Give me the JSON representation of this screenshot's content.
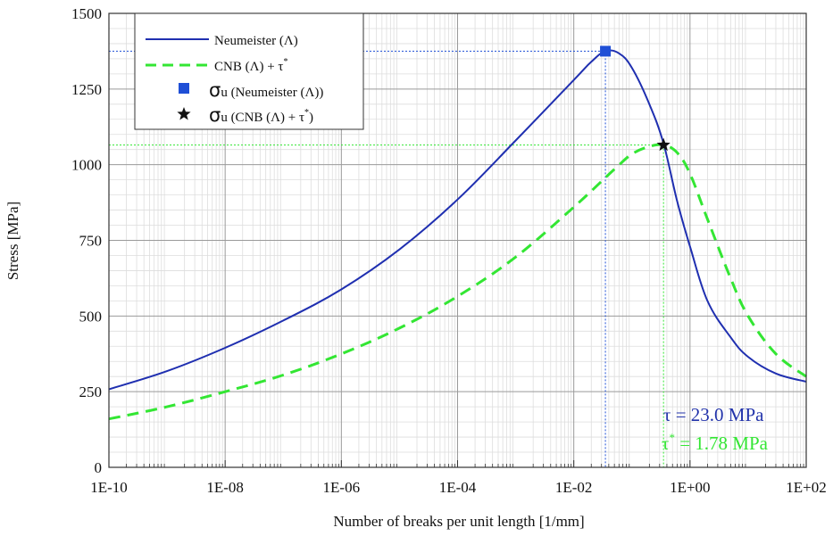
{
  "chart_data": {
    "type": "line",
    "xlabel": "Number of breaks per unit length  [1/mm]",
    "ylabel": "Stress  [MPa]",
    "xscale": "log",
    "xlim": [
      1e-10,
      100
    ],
    "ylim": [
      0,
      1500
    ],
    "xticks": [
      1e-10,
      1e-08,
      1e-06,
      0.0001,
      0.01,
      1,
      100
    ],
    "xtick_labels": [
      "1E-10",
      "1E-08",
      "1E-06",
      "1E-04",
      "1E-02",
      "1E+00",
      "1E+02"
    ],
    "yticks": [
      0,
      250,
      500,
      750,
      1000,
      1250,
      1500
    ],
    "ytick_labels": [
      "0",
      "250",
      "500",
      "750",
      "1000",
      "1250",
      "1500"
    ],
    "grid": true,
    "legend_position": "top-left",
    "series": [
      {
        "name": "Neumeister (Λ)",
        "style": "solid",
        "color": "#1f2fb0",
        "x": [
          1e-10,
          1e-09,
          1e-08,
          1e-07,
          1e-06,
          1e-05,
          0.0001,
          0.001,
          0.01,
          0.02,
          0.035,
          0.06,
          0.1,
          0.2,
          0.35,
          0.6,
          1,
          2,
          5,
          10,
          30,
          100
        ],
        "y": [
          258,
          318,
          395,
          485,
          588,
          720,
          885,
          1080,
          1280,
          1340,
          1375,
          1368,
          1320,
          1200,
          1070,
          880,
          730,
          550,
          430,
          365,
          310,
          283
        ]
      },
      {
        "name": "CNB (Λ) + τ*",
        "style": "dashed",
        "color": "#33e633",
        "x": [
          1e-10,
          1e-09,
          1e-08,
          1e-07,
          1e-06,
          1e-05,
          0.0001,
          0.001,
          0.01,
          0.05,
          0.1,
          0.2,
          0.35,
          0.6,
          1,
          2,
          5,
          10,
          30,
          100
        ],
        "y": [
          160,
          200,
          250,
          305,
          375,
          460,
          565,
          695,
          860,
          985,
          1035,
          1060,
          1065,
          1040,
          970,
          820,
          625,
          500,
          375,
          300
        ]
      }
    ],
    "markers": [
      {
        "name": "σu (Neumeister (Λ))",
        "shape": "square",
        "color": "#1f4fd6",
        "x": 0.035,
        "y": 1375
      },
      {
        "name": "σu (CNB (Λ) + τ*)",
        "shape": "star",
        "color": "#111111",
        "x": 0.35,
        "y": 1065
      }
    ],
    "annotations": [
      {
        "text": "τ = 23.0 MPa",
        "color": "#2233aa"
      },
      {
        "text": "τ* = 1.78 MPa",
        "color": "#33e633"
      }
    ]
  },
  "legend": {
    "entries": [
      {
        "main": "Neumeister (Λ)",
        "sup": ""
      },
      {
        "main": "CNB (Λ) + τ",
        "sup": "*"
      },
      {
        "symbol": "σ",
        "sub": "u",
        "main": " (Neumeister (Λ))",
        "sup": ""
      },
      {
        "symbol": "σ",
        "sub": "u",
        "main": " (CNB (Λ) + τ",
        "sup": "*",
        "tail": ")"
      }
    ]
  },
  "annotation_text": {
    "tau_blue": "τ = 23.0 MPa",
    "tau_green_symbol": "τ",
    "tau_green_sup": "*",
    "tau_green_rest": " = 1.78 MPa"
  },
  "colors": {
    "blue_line": "#1f2fb0",
    "green_line": "#33e633",
    "marker_blue": "#1f4fd6",
    "marker_star": "#111111",
    "grid_major": "#9a9a9a",
    "grid_minor": "#dddddd"
  }
}
